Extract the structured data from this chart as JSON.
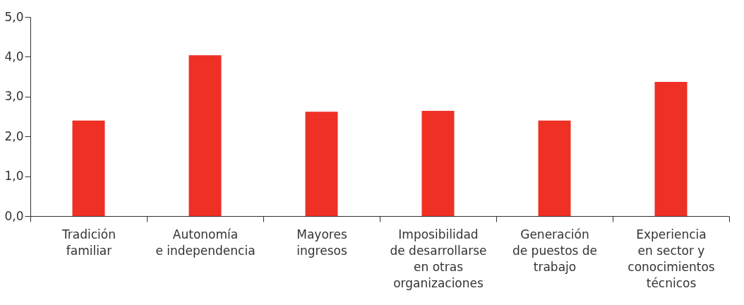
{
  "chart_data": {
    "type": "bar",
    "categories": [
      "Tradición\nfamiliar",
      "Autonomía\ne independencia",
      "Mayores\ningresos",
      "Imposibilidad\nde desarrollarse\nen otras\norganizaciones",
      "Generación\nde puestos de\ntrabajo",
      "Experiencia\nen sector y\nconocimientos\ntécnicos"
    ],
    "values": [
      2.4,
      4.04,
      2.62,
      2.64,
      2.4,
      3.37
    ],
    "color": "#ee3124",
    "ylim": [
      0,
      5
    ],
    "yticks": [
      {
        "value": 0,
        "label": "0,0"
      },
      {
        "value": 1,
        "label": "1,0"
      },
      {
        "value": 2,
        "label": "2,0"
      },
      {
        "value": 3,
        "label": "3,0"
      },
      {
        "value": 4,
        "label": "4,0"
      },
      {
        "value": 5,
        "label": "5,0"
      }
    ],
    "grid": false
  }
}
